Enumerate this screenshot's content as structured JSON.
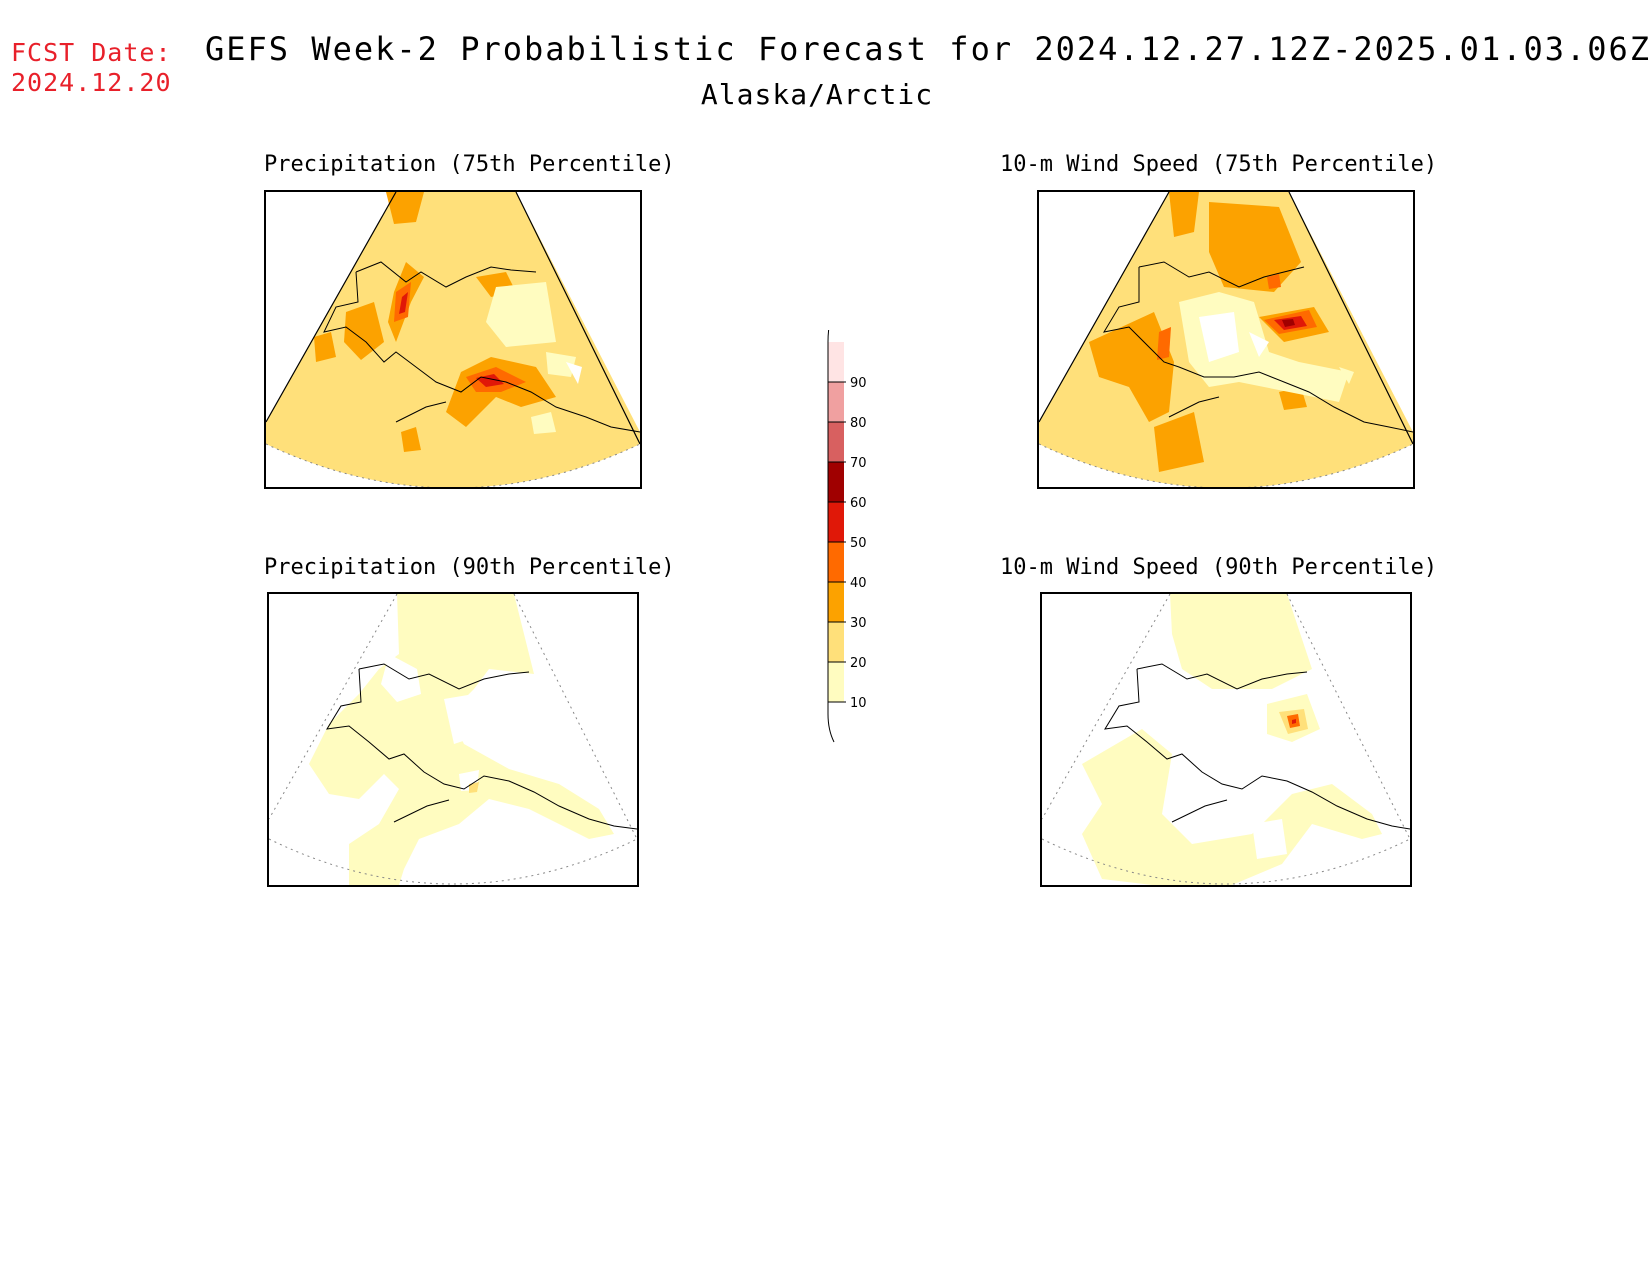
{
  "header": {
    "fcst_label": "FCST Date:",
    "fcst_date": "2024.12.20",
    "title": "GEFS Week-2 Probabilistic Forecast for 2024.12.27.12Z-2025.01.03.06Z",
    "subtitle": "Alaska/Arctic"
  },
  "panels": [
    {
      "title": "Precipitation (75th Percentile)"
    },
    {
      "title": "10-m Wind Speed (75th Percentile)"
    },
    {
      "title": "Precipitation (90th Percentile)"
    },
    {
      "title": "10-m Wind Speed (90th Percentile)"
    }
  ],
  "colors": {
    "c10": "#fffcc0",
    "c20": "#ffe07a",
    "c30": "#fca200",
    "c40": "#ff6a00",
    "c50": "#e01808",
    "c60": "#a00000",
    "c70": "#d86060",
    "c80": "#f0a0a0",
    "c90": "#ffe4e4"
  },
  "colorbar": {
    "levels": [
      "10",
      "20",
      "30",
      "40",
      "50",
      "60",
      "70",
      "80",
      "90"
    ]
  }
}
